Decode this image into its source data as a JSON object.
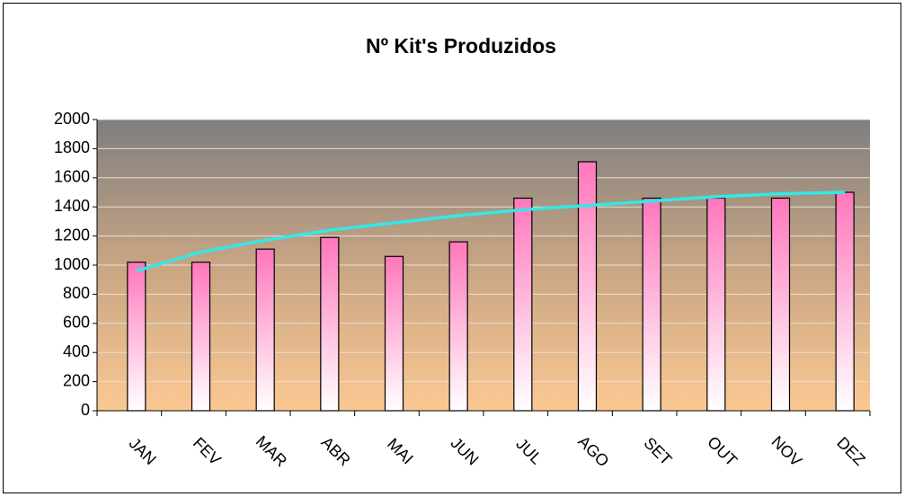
{
  "chart_data": {
    "type": "bar",
    "title": "Nº Kit's Produzidos",
    "categories": [
      "JAN",
      "FEV",
      "MAR",
      "ABR",
      "MAI",
      "JUN",
      "JUL",
      "AGO",
      "SET",
      "OUT",
      "NOV",
      "DEZ"
    ],
    "values": [
      1020,
      1020,
      1110,
      1190,
      1060,
      1160,
      1460,
      1710,
      1460,
      1460,
      1460,
      1500
    ],
    "color": "#ff77bb",
    "trendline": {
      "color": "#33e8e8",
      "values": [
        960,
        1090,
        1170,
        1240,
        1290,
        1340,
        1380,
        1410,
        1440,
        1470,
        1490,
        1500
      ]
    },
    "ylim": [
      0,
      2000
    ],
    "yticks": [
      0,
      200,
      400,
      600,
      800,
      1000,
      1200,
      1400,
      1600,
      1800,
      2000
    ],
    "grid": true
  }
}
